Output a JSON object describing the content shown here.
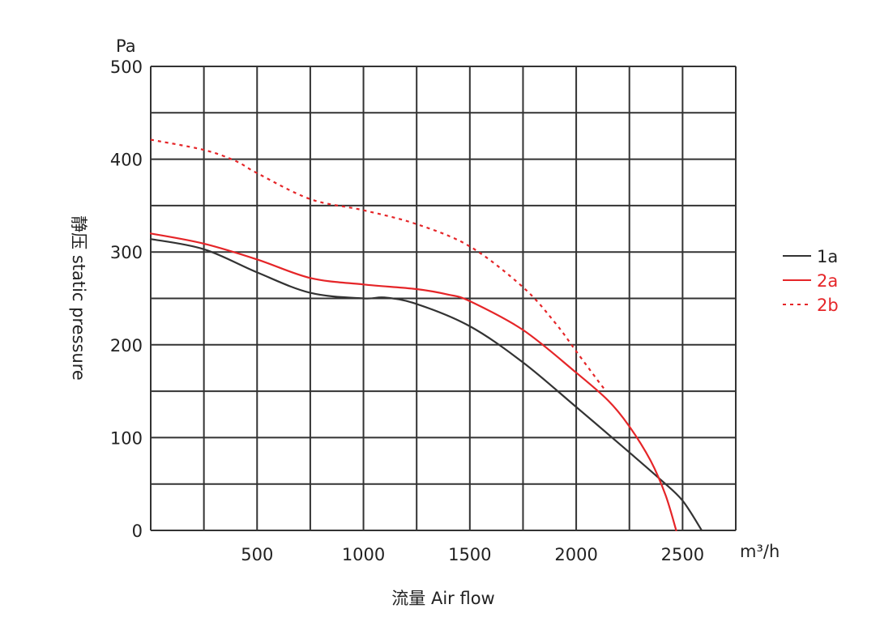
{
  "chart_data": {
    "type": "line",
    "xlabel": "流量 Air flow",
    "ylabel": "静压 static pressure",
    "x_unit": "m³/h",
    "y_unit": "Pa",
    "xlim": [
      0,
      2750
    ],
    "ylim": [
      0,
      500
    ],
    "x_ticks": [
      500,
      1000,
      1500,
      2000,
      2500
    ],
    "y_ticks": [
      0,
      100,
      200,
      300,
      400,
      500
    ],
    "x_tick_labels": [
      "500",
      "1000",
      "1500",
      "2000",
      "2500"
    ],
    "y_tick_labels": [
      "0",
      "100",
      "200",
      "300",
      "400",
      "500"
    ],
    "grid": true,
    "legend_position": "right",
    "series": [
      {
        "name": "1a",
        "color": "#333333",
        "dash": "solid",
        "points": [
          [
            0,
            314
          ],
          [
            250,
            303
          ],
          [
            500,
            278
          ],
          [
            750,
            256
          ],
          [
            1000,
            250
          ],
          [
            1100,
            251
          ],
          [
            1250,
            244
          ],
          [
            1500,
            220
          ],
          [
            1750,
            181
          ],
          [
            2000,
            133
          ],
          [
            2250,
            84
          ],
          [
            2400,
            54
          ],
          [
            2500,
            32
          ],
          [
            2590,
            0
          ]
        ]
      },
      {
        "name": "2a",
        "color": "#e52528",
        "dash": "solid",
        "points": [
          [
            0,
            320
          ],
          [
            250,
            309
          ],
          [
            500,
            292
          ],
          [
            750,
            272
          ],
          [
            1000,
            265
          ],
          [
            1250,
            260
          ],
          [
            1400,
            254
          ],
          [
            1500,
            247
          ],
          [
            1750,
            216
          ],
          [
            2000,
            170
          ],
          [
            2150,
            140
          ],
          [
            2250,
            112
          ],
          [
            2350,
            75
          ],
          [
            2420,
            38
          ],
          [
            2470,
            0
          ]
        ]
      },
      {
        "name": "2b",
        "color": "#e52528",
        "dash": "dotted",
        "points": [
          [
            0,
            421
          ],
          [
            250,
            410
          ],
          [
            400,
            398
          ],
          [
            500,
            385
          ],
          [
            750,
            357
          ],
          [
            1000,
            345
          ],
          [
            1250,
            330
          ],
          [
            1500,
            306
          ],
          [
            1750,
            262
          ],
          [
            1900,
            224
          ],
          [
            2000,
            193
          ],
          [
            2100,
            162
          ],
          [
            2130,
            153
          ]
        ]
      }
    ]
  }
}
